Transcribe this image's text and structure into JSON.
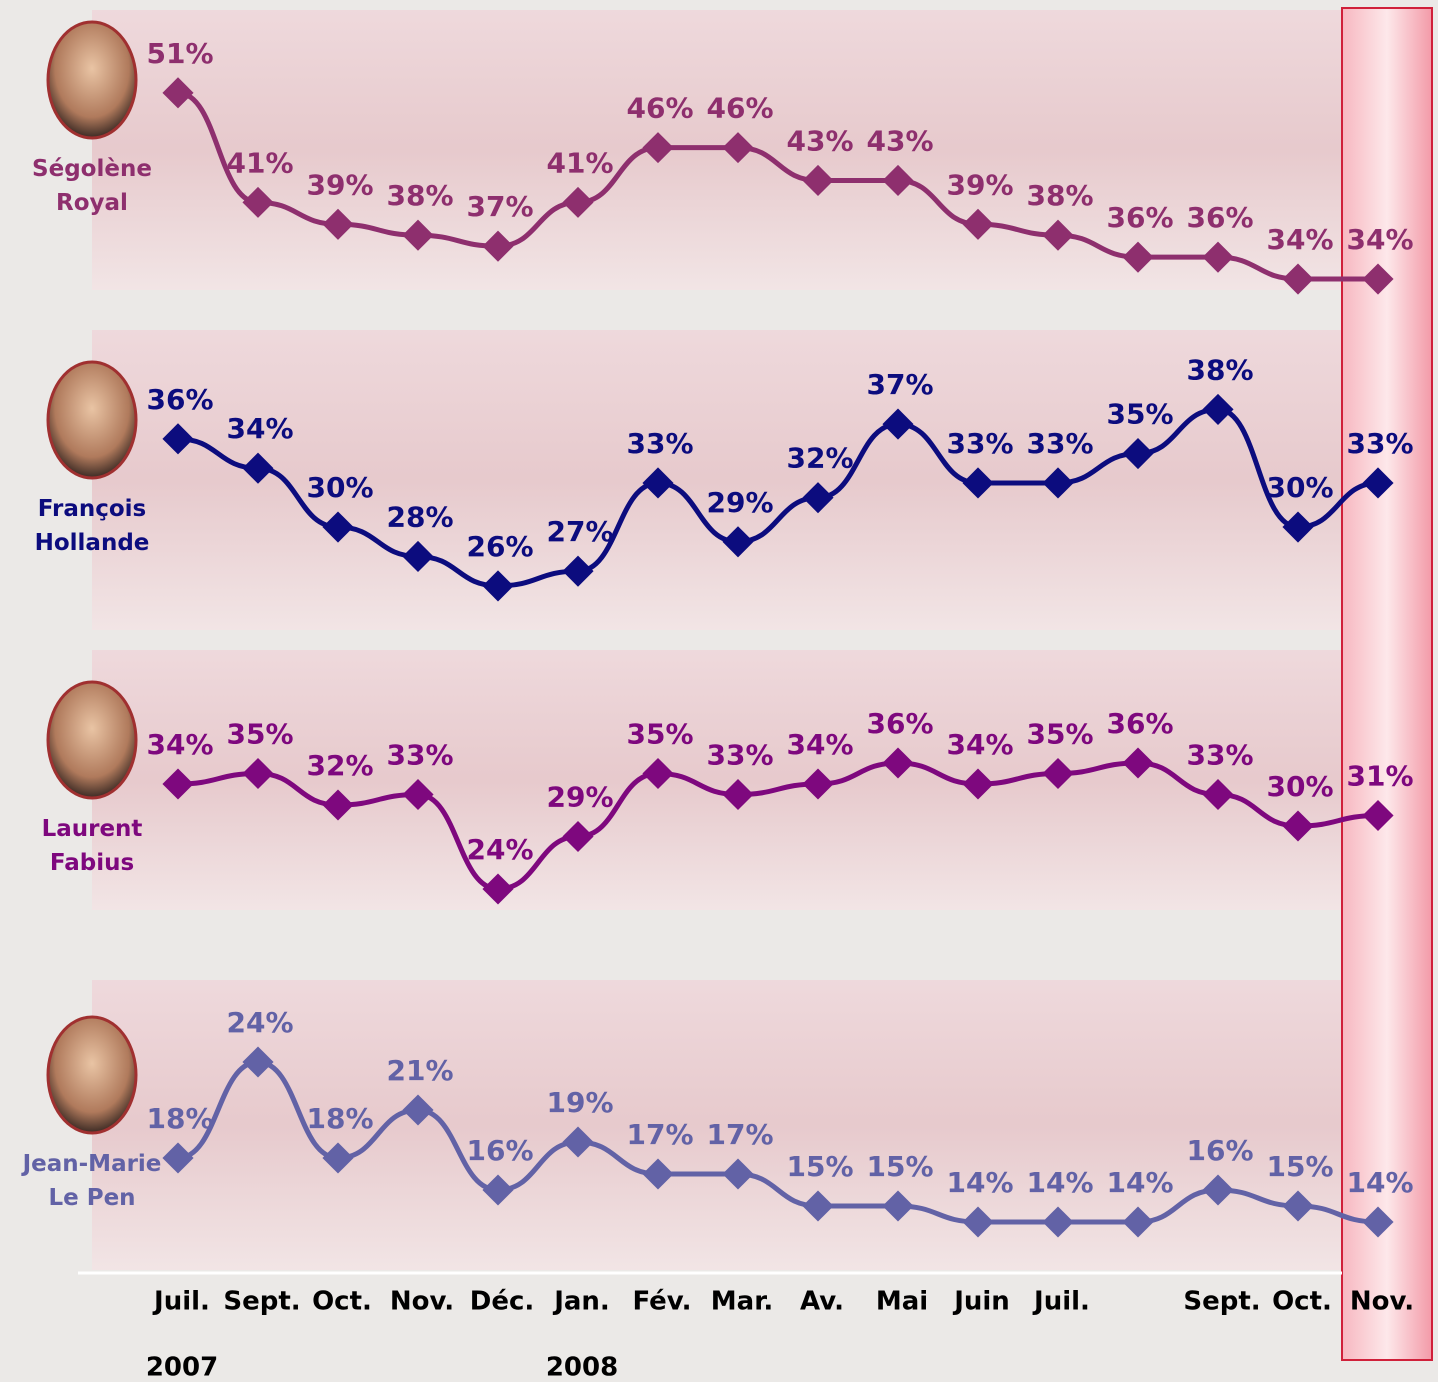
{
  "chart_data": {
    "type": "line",
    "categories": [
      "Juil.",
      "Sept.",
      "Oct.",
      "Nov.",
      "Déc.",
      "Jan.",
      "Fév.",
      "Mar.",
      "Av.",
      "Mai",
      "Juin",
      "Juil.",
      null,
      "Sept.",
      "Oct.",
      "Nov."
    ],
    "category_years": [
      "2007",
      null,
      null,
      null,
      null,
      "2008",
      null,
      null,
      null,
      null,
      null,
      null,
      null,
      null,
      null,
      null
    ],
    "series": [
      {
        "name": "Ségolène Royal",
        "color": "#8e2f6e",
        "ylim": [
          33,
          54
        ],
        "values": [
          51,
          41,
          39,
          38,
          37,
          41,
          46,
          46,
          43,
          43,
          39,
          38,
          36,
          36,
          34,
          34
        ],
        "value_labels": [
          "51%",
          "41%",
          "39%",
          "38%",
          "37%",
          "41%",
          "46%",
          "46%",
          "43%",
          "43%",
          "39%",
          "38%",
          "36%",
          "36%",
          "34%",
          "34%"
        ]
      },
      {
        "name": "François Hollande",
        "color": "#0c0c7e",
        "ylim": [
          23,
          40
        ],
        "values": [
          36,
          34,
          30,
          28,
          26,
          27,
          33,
          29,
          32,
          37,
          33,
          33,
          35,
          38,
          30,
          33
        ],
        "value_labels": [
          "36%",
          "34%",
          "30%",
          "28%",
          "26%",
          "27%",
          "33%",
          "29%",
          "32%",
          "37%",
          "33%",
          "33%",
          "35%",
          "38%",
          "30%",
          "33%"
        ]
      },
      {
        "name": "Laurent Fabius",
        "color": "#7e087e",
        "ylim": [
          22,
          42
        ],
        "values": [
          34,
          35,
          32,
          33,
          24,
          29,
          35,
          33,
          34,
          36,
          34,
          35,
          36,
          33,
          30,
          31
        ],
        "value_labels": [
          "34%",
          "35%",
          "32%",
          "33%",
          "24%",
          "29%",
          "35%",
          "33%",
          "34%",
          "36%",
          "34%",
          "35%",
          "36%",
          "33%",
          "30%",
          "31%"
        ]
      },
      {
        "name": "Jean-Marie Le Pen",
        "color": "#6262a6",
        "ylim": [
          11,
          26
        ],
        "values": [
          18,
          24,
          18,
          21,
          16,
          19,
          17,
          17,
          15,
          15,
          14,
          14,
          14,
          16,
          15,
          14
        ],
        "value_labels": [
          "18%",
          "24%",
          "18%",
          "21%",
          "16%",
          "19%",
          "17%",
          "17%",
          "15%",
          "15%",
          "14%",
          "14%",
          "14%",
          "16%",
          "15%",
          "14%"
        ]
      }
    ],
    "highlight_category": 15
  }
}
